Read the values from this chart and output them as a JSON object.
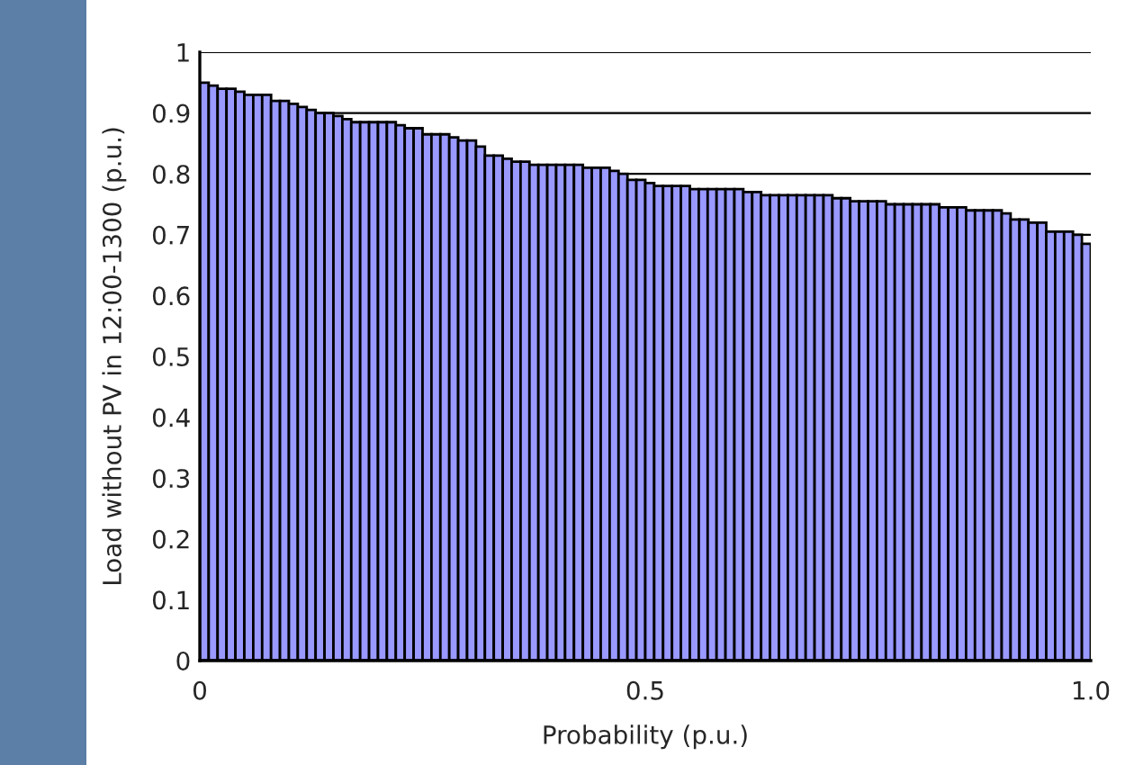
{
  "chart_data": {
    "type": "histogram",
    "xlabel": "Probability (p.u.)",
    "ylabel": "Load without PV in 12:00-1300 (p.u.)",
    "bins": [
      0,
      0.01,
      0.02,
      0.03,
      0.04,
      0.05,
      0.06,
      0.07,
      0.08,
      0.09,
      0.1,
      0.11,
      0.12,
      0.13,
      0.14,
      0.15,
      0.16,
      0.17,
      0.18,
      0.19,
      0.2,
      0.21,
      0.22,
      0.23,
      0.24,
      0.25,
      0.26,
      0.27,
      0.28,
      0.29,
      0.3,
      0.31,
      0.32,
      0.33,
      0.34,
      0.35,
      0.36,
      0.37,
      0.38,
      0.39,
      0.4,
      0.41,
      0.42,
      0.43,
      0.44,
      0.45,
      0.46,
      0.47,
      0.48,
      0.49,
      0.5,
      0.51,
      0.52,
      0.53,
      0.54,
      0.55,
      0.56,
      0.57,
      0.58,
      0.59,
      0.6,
      0.61,
      0.62,
      0.63,
      0.64,
      0.65,
      0.66,
      0.67,
      0.68,
      0.69,
      0.7,
      0.71,
      0.72,
      0.73,
      0.74,
      0.75,
      0.76,
      0.77,
      0.78,
      0.79,
      0.8,
      0.81,
      0.82,
      0.83,
      0.84,
      0.85,
      0.86,
      0.87,
      0.88,
      0.89,
      0.9,
      0.91,
      0.92,
      0.93,
      0.94,
      0.95,
      0.96,
      0.97,
      0.98,
      0.99,
      1
    ],
    "values": [
      0.95,
      0.945,
      0.94,
      0.94,
      0.935,
      0.93,
      0.93,
      0.93,
      0.92,
      0.92,
      0.915,
      0.91,
      0.905,
      0.9,
      0.9,
      0.895,
      0.89,
      0.885,
      0.885,
      0.885,
      0.885,
      0.885,
      0.88,
      0.875,
      0.875,
      0.865,
      0.865,
      0.865,
      0.86,
      0.855,
      0.855,
      0.845,
      0.83,
      0.83,
      0.825,
      0.82,
      0.82,
      0.815,
      0.815,
      0.815,
      0.815,
      0.815,
      0.815,
      0.81,
      0.81,
      0.81,
      0.805,
      0.8,
      0.79,
      0.79,
      0.785,
      0.78,
      0.78,
      0.78,
      0.78,
      0.775,
      0.775,
      0.775,
      0.775,
      0.775,
      0.775,
      0.77,
      0.77,
      0.765,
      0.765,
      0.765,
      0.765,
      0.765,
      0.765,
      0.765,
      0.765,
      0.76,
      0.76,
      0.755,
      0.755,
      0.755,
      0.755,
      0.75,
      0.75,
      0.75,
      0.75,
      0.75,
      0.75,
      0.745,
      0.745,
      0.745,
      0.74,
      0.74,
      0.74,
      0.74,
      0.735,
      0.725,
      0.725,
      0.72,
      0.72,
      0.705,
      0.705,
      0.705,
      0.7,
      0.685
    ],
    "color": "#9999ff",
    "xlim": [
      0,
      1
    ],
    "ylim": [
      0,
      1
    ],
    "xticks": [
      0,
      0.5,
      {
        "value": 1,
        "label": "1.0"
      }
    ],
    "yticks": [
      0,
      0.1,
      0.2,
      0.3,
      0.4,
      0.5,
      0.6,
      0.7,
      0.8,
      0.9,
      1
    ],
    "grid": "y"
  }
}
